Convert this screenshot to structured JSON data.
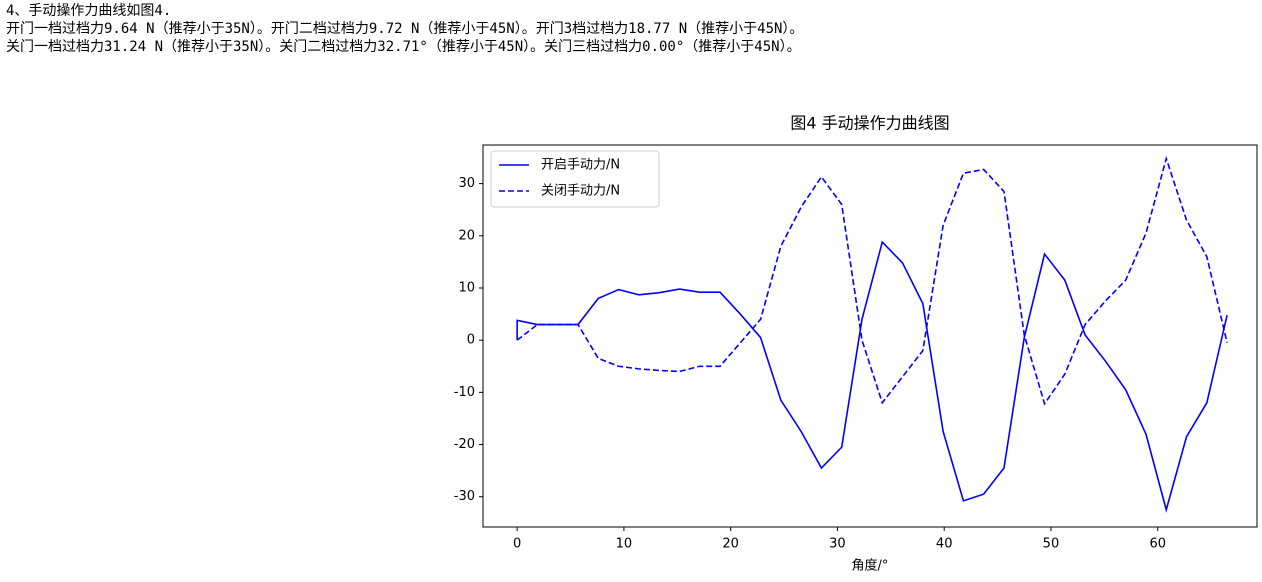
{
  "lines": [
    "4、手动操作力曲线如图4.",
    "开门一档过档力9.64 N（推荐小于35N）。开门二档过档力9.72 N（推荐小于45N）。开门3档过档力18.77 N（推荐小于45N）。",
    "关门一档过档力31.24 N（推荐小于35N）。关门二档过档力32.71°（推荐小于45N）。关门三档过档力0.00°（推荐小于45N）。"
  ],
  "chart_data": {
    "type": "line",
    "title": "图4 手动操作力曲线图",
    "x_label": "角度/°",
    "xlim": [
      -3.2,
      69.3
    ],
    "ylim": [
      -35.8,
      37.4
    ],
    "xticks": [
      0,
      10,
      20,
      30,
      40,
      50,
      60
    ],
    "yticks": [
      -30,
      -20,
      -10,
      0,
      10,
      20,
      30
    ],
    "legend": "upper left",
    "series": [
      {
        "name": "开启手动力/N",
        "color": "#0000ff",
        "dash": false,
        "x": [
          0,
          0,
          1.9,
          3.8,
          5.7,
          7.6,
          9.5,
          11.4,
          13.3,
          15.2,
          17.1,
          19,
          20.9,
          22.8,
          24.7,
          26.6,
          28.5,
          30.4,
          32.3,
          34.2,
          36.1,
          38,
          39.9,
          41.8,
          43.7,
          45.6,
          47.5,
          49.4,
          51.3,
          53.2,
          55.1,
          57,
          58.9,
          60.8,
          62.7,
          64.6,
          66.5
        ],
        "values": [
          0,
          3.8,
          3,
          3,
          3,
          8,
          9.7,
          8.7,
          9.1,
          9.8,
          9.2,
          9.2,
          5,
          0.5,
          -11.5,
          -17.5,
          -24.5,
          -20.5,
          4,
          18.8,
          14.8,
          7,
          -17.5,
          -30.8,
          -29.5,
          -24.5,
          0.5,
          16.5,
          11.5,
          1,
          -4,
          -9.5,
          -18,
          -32.5,
          -18.5,
          -12,
          4.8
        ]
      },
      {
        "name": "关闭手动力/N",
        "color": "#0000ff",
        "dash": true,
        "x": [
          0,
          1.9,
          3.8,
          5.7,
          7.6,
          9.5,
          11.4,
          13.3,
          15.2,
          17.1,
          19,
          20.9,
          22.8,
          24.7,
          26.6,
          28.5,
          30.4,
          32.3,
          34.2,
          36.1,
          38,
          39.9,
          41.8,
          43.7,
          45.6,
          47.5,
          49.4,
          51.3,
          53.2,
          55.1,
          57,
          58.9,
          60.8,
          62.7,
          64.6,
          66.5
        ],
        "values": [
          0,
          3,
          3,
          3,
          -3.5,
          -5,
          -5.5,
          -5.8,
          -6,
          -5,
          -5,
          -0.5,
          4,
          18,
          25.5,
          31.3,
          26,
          0,
          -12,
          -7,
          -2,
          22,
          32,
          32.7,
          28.5,
          1,
          -12.2,
          -6.5,
          3,
          7.5,
          11.5,
          20.5,
          34.8,
          23,
          16,
          -0.5
        ]
      }
    ]
  }
}
